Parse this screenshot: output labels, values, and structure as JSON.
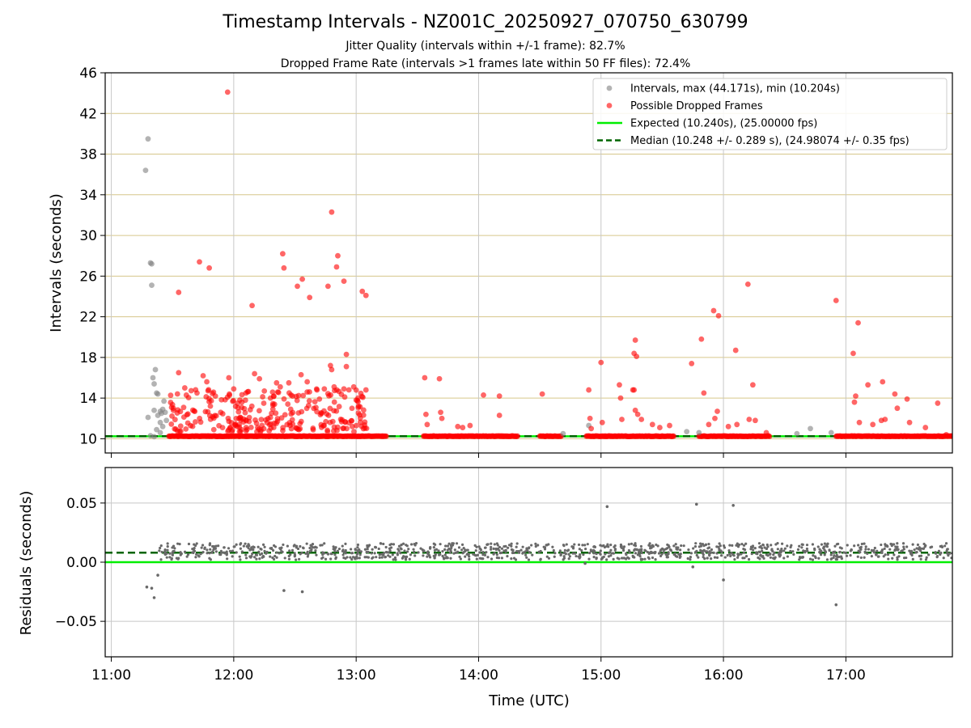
{
  "chart_data": [
    {
      "type": "scatter",
      "title": "Timestamp Intervals - NZ001C_20250927_070750_630799",
      "subtitle_1": "Jitter Quality (intervals within +/-1 frame): 82.7%",
      "subtitle_2": "Dropped Frame Rate (intervals >1 frames late within 50 FF files): 72.4%",
      "xlabel": "",
      "ylabel": "Intervals (seconds)",
      "xlim_hours": [
        10.95,
        17.87
      ],
      "ylim": [
        8.6,
        46
      ],
      "yticks": [
        10,
        14,
        18,
        22,
        26,
        30,
        34,
        38,
        42,
        46
      ],
      "xticks": [
        11,
        12,
        13,
        14,
        15,
        16,
        17
      ],
      "legend_position": "top-right",
      "expected_interval": 10.24,
      "median_interval": 10.248,
      "series": [
        {
          "name": "Intervals, max (44.171s), min (10.204s)",
          "color": "#808080",
          "points": [
            [
              11.28,
              36.4
            ],
            [
              11.3,
              39.5
            ],
            [
              11.32,
              27.3
            ],
            [
              11.33,
              27.2
            ],
            [
              11.33,
              25.1
            ],
            [
              11.34,
              16.0
            ],
            [
              11.35,
              15.4
            ],
            [
              11.36,
              16.8
            ],
            [
              11.37,
              14.5
            ],
            [
              11.38,
              14.4
            ],
            [
              11.3,
              12.1
            ],
            [
              11.35,
              12.8
            ],
            [
              11.38,
              12.3
            ],
            [
              11.4,
              12.7
            ],
            [
              11.41,
              12.5
            ],
            [
              11.42,
              12.9
            ],
            [
              11.43,
              13.7
            ],
            [
              11.44,
              12.6
            ],
            [
              11.4,
              11.6
            ],
            [
              11.42,
              11.2
            ],
            [
              11.45,
              11.8
            ],
            [
              11.37,
              10.9
            ],
            [
              11.32,
              10.3
            ],
            [
              11.35,
              10.2
            ],
            [
              11.4,
              10.6
            ],
            [
              14.69,
              10.5
            ],
            [
              14.9,
              11.3
            ],
            [
              15.7,
              10.7
            ],
            [
              15.8,
              10.6
            ],
            [
              16.6,
              10.5
            ],
            [
              16.71,
              11.0
            ],
            [
              16.88,
              10.6
            ]
          ]
        },
        {
          "name": "Possible Dropped Frames",
          "color": "#ff0000",
          "points": [
            [
              11.95,
              44.1
            ],
            [
              11.72,
              27.4
            ],
            [
              11.8,
              26.8
            ],
            [
              11.55,
              24.4
            ],
            [
              12.15,
              23.1
            ],
            [
              12.4,
              28.2
            ],
            [
              12.41,
              26.8
            ],
            [
              12.52,
              25.0
            ],
            [
              12.56,
              25.7
            ],
            [
              12.62,
              23.9
            ],
            [
              12.8,
              32.3
            ],
            [
              12.85,
              28.0
            ],
            [
              12.84,
              26.9
            ],
            [
              12.77,
              25.0
            ],
            [
              12.9,
              25.5
            ],
            [
              13.05,
              24.5
            ],
            [
              13.08,
              24.1
            ],
            [
              12.92,
              18.3
            ],
            [
              12.92,
              17.1
            ],
            [
              12.79,
              17.2
            ],
            [
              12.8,
              16.8
            ],
            [
              11.55,
              16.5
            ],
            [
              11.96,
              16.0
            ],
            [
              12.17,
              16.4
            ],
            [
              12.21,
              15.9
            ],
            [
              12.35,
              15.5
            ],
            [
              12.45,
              15.5
            ],
            [
              12.55,
              16.3
            ],
            [
              12.6,
              15.6
            ],
            [
              12.68,
              14.8
            ],
            [
              12.74,
              14.9
            ],
            [
              12.82,
              15.1
            ],
            [
              12.9,
              14.9
            ],
            [
              12.98,
              15.1
            ],
            [
              13.08,
              14.8
            ],
            [
              11.6,
              15.0
            ],
            [
              11.7,
              14.5
            ],
            [
              11.75,
              16.2
            ],
            [
              11.78,
              15.6
            ],
            [
              11.85,
              14.2
            ],
            [
              12.0,
              14.9
            ],
            [
              12.05,
              13.8
            ],
            [
              12.1,
              14.5
            ],
            [
              12.25,
              14.7
            ],
            [
              12.3,
              14.0
            ],
            [
              12.38,
              15.1
            ],
            [
              12.48,
              14.2
            ],
            [
              12.6,
              14.6
            ],
            [
              12.7,
              13.9
            ],
            [
              13.0,
              13.8
            ],
            [
              13.02,
              13.2
            ],
            [
              13.56,
              16.0
            ],
            [
              13.68,
              15.9
            ],
            [
              13.57,
              12.4
            ],
            [
              13.69,
              12.6
            ],
            [
              13.7,
              12.0
            ],
            [
              13.58,
              11.4
            ],
            [
              13.83,
              11.2
            ],
            [
              13.87,
              11.1
            ],
            [
              13.93,
              11.3
            ],
            [
              14.04,
              14.3
            ],
            [
              14.17,
              14.2
            ],
            [
              14.17,
              12.3
            ],
            [
              14.52,
              14.4
            ],
            [
              14.9,
              14.8
            ],
            [
              14.91,
              12.0
            ],
            [
              14.92,
              11.0
            ],
            [
              15.0,
              17.5
            ],
            [
              15.01,
              11.6
            ],
            [
              15.15,
              15.3
            ],
            [
              15.16,
              14.0
            ],
            [
              15.17,
              11.9
            ],
            [
              15.26,
              14.8
            ],
            [
              15.27,
              14.8
            ],
            [
              15.28,
              19.7
            ],
            [
              15.27,
              18.4
            ],
            [
              15.29,
              18.1
            ],
            [
              15.28,
              12.8
            ],
            [
              15.3,
              12.4
            ],
            [
              15.33,
              11.9
            ],
            [
              15.42,
              11.4
            ],
            [
              15.48,
              11.1
            ],
            [
              15.56,
              11.3
            ],
            [
              15.74,
              17.4
            ],
            [
              15.82,
              19.8
            ],
            [
              15.84,
              14.5
            ],
            [
              15.92,
              22.6
            ],
            [
              15.96,
              22.1
            ],
            [
              15.95,
              12.7
            ],
            [
              15.93,
              12.0
            ],
            [
              15.88,
              11.4
            ],
            [
              16.04,
              11.2
            ],
            [
              16.1,
              18.7
            ],
            [
              16.11,
              11.4
            ],
            [
              16.2,
              25.2
            ],
            [
              16.21,
              11.9
            ],
            [
              16.24,
              15.3
            ],
            [
              16.26,
              11.8
            ],
            [
              16.35,
              10.6
            ],
            [
              16.92,
              23.6
            ],
            [
              17.06,
              18.4
            ],
            [
              17.08,
              14.2
            ],
            [
              17.07,
              13.6
            ],
            [
              17.1,
              21.4
            ],
            [
              17.11,
              11.6
            ],
            [
              17.18,
              15.3
            ],
            [
              17.22,
              11.4
            ],
            [
              17.29,
              11.8
            ],
            [
              17.3,
              15.6
            ],
            [
              17.32,
              11.9
            ],
            [
              17.4,
              14.4
            ],
            [
              17.42,
              13.0
            ],
            [
              17.5,
              13.9
            ],
            [
              17.52,
              11.6
            ],
            [
              17.65,
              11.1
            ],
            [
              17.75,
              13.5
            ],
            [
              17.82,
              10.4
            ]
          ]
        }
      ]
    },
    {
      "type": "scatter",
      "ylabel": "Residuals (seconds)",
      "xlabel": "Time (UTC)",
      "xtick_labels": [
        "11:00",
        "12:00",
        "13:00",
        "14:00",
        "15:00",
        "16:00",
        "17:00"
      ],
      "ylim": [
        -0.08,
        0.08
      ],
      "yticks": [
        0.05,
        0.0,
        -0.05
      ],
      "ytick_labels": [
        "0.05",
        "0.00",
        "−0.05"
      ],
      "expected_residual": 0.0,
      "median_residual": 0.008,
      "series": [
        {
          "name": "Residuals",
          "color": "#696969",
          "outliers": [
            [
              11.29,
              -0.021
            ],
            [
              11.33,
              -0.022
            ],
            [
              11.35,
              -0.03
            ],
            [
              11.38,
              -0.011
            ],
            [
              12.41,
              -0.024
            ],
            [
              12.56,
              -0.025
            ],
            [
              15.05,
              0.047
            ],
            [
              15.78,
              0.049
            ],
            [
              16.08,
              0.048
            ],
            [
              15.75,
              -0.004
            ],
            [
              16.0,
              -0.015
            ],
            [
              16.92,
              -0.036
            ],
            [
              14.87,
              -0.001
            ]
          ]
        }
      ]
    }
  ],
  "legend": {
    "items": [
      {
        "label": "Intervals, max (44.171s), min (10.204s)",
        "symbol": "gray-dot"
      },
      {
        "label": "Possible Dropped Frames",
        "symbol": "red-dot"
      },
      {
        "label": "Expected (10.240s), (25.00000 fps)",
        "symbol": "green-line"
      },
      {
        "label": "Median (10.248 +/- 0.289 s), (24.98074 +/- 0.35 fps)",
        "symbol": "dashed-darkgreen-line"
      }
    ]
  },
  "colors": {
    "gray": "#808080",
    "red": "#ff0000",
    "expected": "#00ee00",
    "median": "#006400",
    "hgrid": "#d6c68a",
    "vgrid": "#c8c8c8",
    "residual": "#696969"
  }
}
